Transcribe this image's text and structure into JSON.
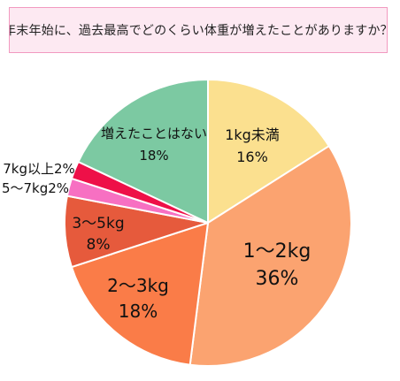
{
  "question": "年末年始に、過去最高でどのくらい体重が増えたことがありますか？",
  "chart_data": {
    "type": "pie",
    "title": "",
    "start": "top",
    "direction": "clockwise",
    "slices": [
      {
        "name": "1kg未満",
        "percent_label": "16%",
        "value": 16,
        "color": "#fbe08f"
      },
      {
        "name": "1～2kg",
        "percent_label": "36%",
        "value": 36,
        "color": "#fba370"
      },
      {
        "name": "2～3kg",
        "percent_label": "18%",
        "value": 18,
        "color": "#fa7c48"
      },
      {
        "name": "3～5kg",
        "percent_label": "8%",
        "value": 8,
        "color": "#e65a3c"
      },
      {
        "name": "5～7kg2%",
        "percent_label": "",
        "value": 2,
        "color": "#f770c2"
      },
      {
        "name": "7kg以上2%",
        "percent_label": "",
        "value": 2,
        "color": "#ee1048"
      },
      {
        "name": "増えたことはない",
        "percent_label": "18%",
        "value": 18,
        "color": "#7cc9a2"
      }
    ]
  }
}
